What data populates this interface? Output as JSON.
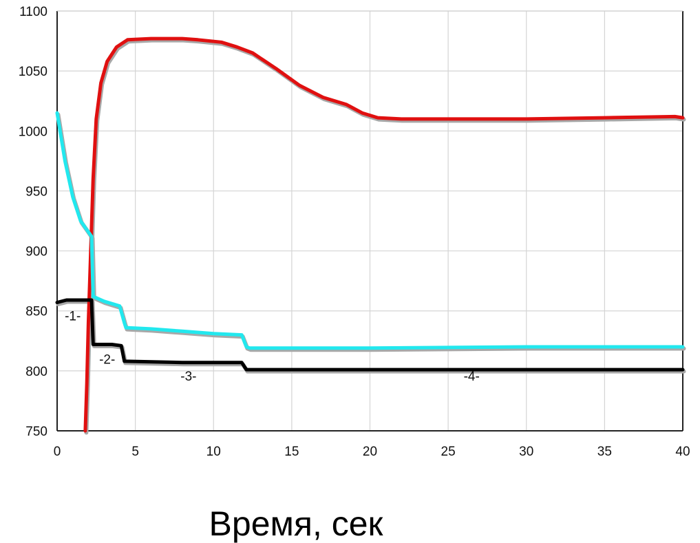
{
  "chart_data": {
    "type": "line",
    "xlabel": "Время, сек",
    "ylabel": "",
    "title": "",
    "xlim": [
      0,
      40
    ],
    "ylim": [
      750,
      1100
    ],
    "xticks": [
      "0",
      "5",
      "10",
      "15",
      "20",
      "25",
      "30",
      "35",
      "40"
    ],
    "yticks": [
      "750",
      "800",
      "850",
      "900",
      "950",
      "1000",
      "1050",
      "1100"
    ],
    "grid": true,
    "series": [
      {
        "color": "#e01010",
        "points": [
          [
            1.8,
            750
          ],
          [
            1.9,
            790
          ],
          [
            2.0,
            840
          ],
          [
            2.1,
            880
          ],
          [
            2.2,
            920
          ],
          [
            2.3,
            960
          ],
          [
            2.5,
            1010
          ],
          [
            2.8,
            1040
          ],
          [
            3.2,
            1058
          ],
          [
            3.8,
            1070
          ],
          [
            4.5,
            1076
          ],
          [
            6,
            1077
          ],
          [
            8,
            1077
          ],
          [
            9,
            1076
          ],
          [
            10.5,
            1074
          ],
          [
            11.5,
            1070
          ],
          [
            12.5,
            1065
          ],
          [
            14,
            1052
          ],
          [
            15.5,
            1038
          ],
          [
            17,
            1028
          ],
          [
            18.5,
            1022
          ],
          [
            19.5,
            1015
          ],
          [
            20.5,
            1011
          ],
          [
            22,
            1010
          ],
          [
            30,
            1010
          ],
          [
            35,
            1011
          ],
          [
            39.5,
            1012
          ],
          [
            40,
            1011
          ]
        ]
      },
      {
        "color": "#22e8ee",
        "points": [
          [
            0,
            1015
          ],
          [
            0.5,
            975
          ],
          [
            1.0,
            945
          ],
          [
            1.5,
            925
          ],
          [
            2.2,
            912
          ],
          [
            2.3,
            862
          ],
          [
            3,
            858
          ],
          [
            4,
            854
          ],
          [
            4.3,
            840
          ],
          [
            4.4,
            836
          ],
          [
            6,
            835
          ],
          [
            8,
            833
          ],
          [
            10,
            831
          ],
          [
            11.8,
            830
          ],
          [
            12.1,
            820
          ],
          [
            12.3,
            819
          ],
          [
            20,
            819
          ],
          [
            30,
            820
          ],
          [
            40,
            820
          ]
        ]
      },
      {
        "color": "#000000",
        "points": [
          [
            0,
            857
          ],
          [
            0.6,
            859
          ],
          [
            2.2,
            859
          ],
          [
            2.3,
            822
          ],
          [
            3.5,
            822
          ],
          [
            4.1,
            821
          ],
          [
            4.3,
            808
          ],
          [
            8,
            807
          ],
          [
            10,
            807
          ],
          [
            11.8,
            807
          ],
          [
            12.1,
            801
          ],
          [
            12.3,
            801
          ],
          [
            40,
            801
          ]
        ]
      }
    ],
    "annotations": [
      {
        "text": "-1-",
        "x": 1.0,
        "y": 842
      },
      {
        "text": "-2-",
        "x": 3.2,
        "y": 806
      },
      {
        "text": "-3-",
        "x": 8.4,
        "y": 792
      },
      {
        "text": "-4-",
        "x": 26.5,
        "y": 792
      }
    ]
  }
}
